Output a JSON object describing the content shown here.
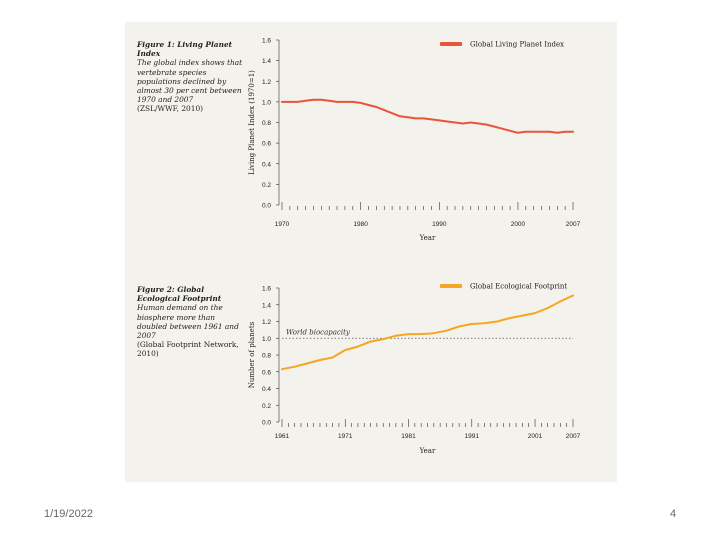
{
  "footer": {
    "date": "1/19/2022",
    "page_number": "4"
  },
  "figure1": {
    "caption_title": "Figure 1: Living Planet Index",
    "caption_body": "The global index shows that vertebrate species populations declined by almost 30 per cent between 1970 and 2007",
    "caption_source": "(ZSL/WWF, 2010)"
  },
  "figure2": {
    "caption_title": "Figure 2: Global Ecological Footprint",
    "caption_body": "Human demand on the biosphere more than doubled between 1961 and 2007",
    "caption_source": "(Global Footprint Network, 2010)"
  },
  "chart_data": [
    {
      "type": "line",
      "title": "",
      "xlabel": "Year",
      "ylabel": "Living Planet Index (1970=1)",
      "xlim": [
        1970,
        2007
      ],
      "ylim": [
        0,
        1.6
      ],
      "xticks": [
        1970,
        1980,
        1990,
        2000,
        2007
      ],
      "yticks": [
        0.0,
        0.2,
        0.4,
        0.6,
        0.8,
        1.0,
        1.2,
        1.4,
        1.6
      ],
      "legend_position": "top-right",
      "series": [
        {
          "name": "Global Living Planet Index",
          "color": "#e8553a",
          "x": [
            1970,
            1971,
            1972,
            1973,
            1974,
            1975,
            1976,
            1977,
            1978,
            1979,
            1980,
            1981,
            1982,
            1983,
            1984,
            1985,
            1986,
            1987,
            1988,
            1989,
            1990,
            1991,
            1992,
            1993,
            1994,
            1995,
            1996,
            1997,
            1998,
            1999,
            2000,
            2001,
            2002,
            2003,
            2004,
            2005,
            2006,
            2007
          ],
          "values": [
            1.0,
            1.0,
            1.0,
            1.01,
            1.02,
            1.02,
            1.01,
            1.0,
            1.0,
            1.0,
            0.99,
            0.97,
            0.95,
            0.92,
            0.89,
            0.86,
            0.85,
            0.84,
            0.84,
            0.83,
            0.82,
            0.81,
            0.8,
            0.79,
            0.8,
            0.79,
            0.78,
            0.76,
            0.74,
            0.72,
            0.7,
            0.71,
            0.71,
            0.71,
            0.71,
            0.7,
            0.71,
            0.71
          ]
        }
      ]
    },
    {
      "type": "line",
      "title": "",
      "xlabel": "Year",
      "ylabel": "Number of planets",
      "xlim": [
        1961,
        2007
      ],
      "ylim": [
        0,
        1.6
      ],
      "xticks": [
        1961,
        1971,
        1981,
        1991,
        2001,
        2007
      ],
      "yticks": [
        0.0,
        0.2,
        0.4,
        0.6,
        0.8,
        1.0,
        1.2,
        1.4,
        1.6
      ],
      "legend_position": "top-right",
      "reference_line": {
        "label": "World biocapacity",
        "value": 1.0
      },
      "series": [
        {
          "name": "Global Ecological Footprint",
          "color": "#f5a623",
          "x": [
            1961,
            1963,
            1965,
            1967,
            1969,
            1971,
            1973,
            1975,
            1977,
            1979,
            1981,
            1983,
            1985,
            1987,
            1989,
            1991,
            1993,
            1995,
            1997,
            1999,
            2001,
            2003,
            2005,
            2007
          ],
          "values": [
            0.63,
            0.66,
            0.7,
            0.74,
            0.77,
            0.86,
            0.9,
            0.96,
            0.99,
            1.03,
            1.05,
            1.05,
            1.06,
            1.09,
            1.14,
            1.17,
            1.18,
            1.2,
            1.24,
            1.27,
            1.3,
            1.36,
            1.44,
            1.51
          ]
        }
      ]
    }
  ]
}
